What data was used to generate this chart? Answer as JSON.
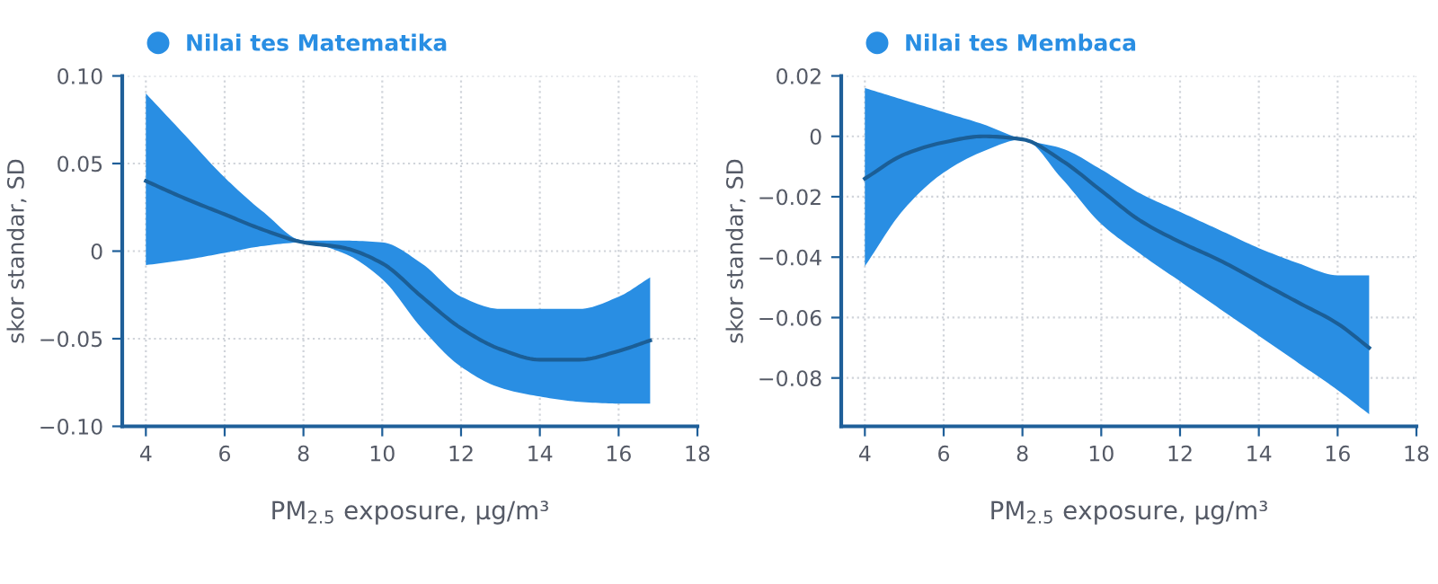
{
  "chart_data": [
    {
      "type": "line",
      "xlabel": "PM$_{2.5}$ exposure, μg/m³",
      "ylabel": "skor standar, SD",
      "xlim": [
        3.4,
        18
      ],
      "xticks": [
        4,
        6,
        8,
        10,
        12,
        14,
        16,
        18
      ],
      "ylim": [
        -0.1,
        0.1
      ],
      "yticks": [
        {
          "value": 0.1,
          "label": "0.10"
        },
        {
          "value": 0.05,
          "label": "0.05"
        },
        0,
        {
          "value": -0.05,
          "label": "−0.05"
        },
        {
          "value": -0.1,
          "label": "−0.10"
        }
      ],
      "grid": true,
      "legend": "top left",
      "marker": "none",
      "line_style": "solid",
      "x": [
        4,
        5,
        6,
        7,
        8,
        9,
        10,
        11,
        12,
        13,
        14,
        15,
        16,
        16.8
      ],
      "series": [
        {
          "name": "Nilai tes Matematika",
          "color": "#1b5e96",
          "values": [
            0.04,
            0.03,
            0.021,
            0.012,
            0.005,
            0.002,
            -0.007,
            -0.026,
            -0.044,
            -0.056,
            -0.062,
            -0.062,
            -0.057,
            -0.051
          ],
          "lower": [
            -0.008,
            -0.005,
            -0.001,
            0.003,
            0.005,
            -0.001,
            -0.016,
            -0.044,
            -0.066,
            -0.078,
            -0.083,
            -0.086,
            -0.087,
            -0.087
          ],
          "upper": [
            0.09,
            0.066,
            0.042,
            0.022,
            0.006,
            0.006,
            0.005,
            -0.007,
            -0.026,
            -0.033,
            -0.033,
            -0.033,
            -0.026,
            -0.015
          ]
        }
      ]
    },
    {
      "type": "line",
      "xlabel": "PM$_{2.5}$ exposure, μg/m³",
      "ylabel": "skor standar, SD",
      "xlim": [
        3.4,
        18
      ],
      "xticks": [
        4,
        6,
        8,
        10,
        12,
        14,
        16,
        18
      ],
      "ylim": [
        -0.096,
        0.02
      ],
      "yticks": [
        {
          "value": 0.02,
          "label": "0.02"
        },
        0,
        {
          "value": -0.02,
          "label": "−0.02"
        },
        {
          "value": -0.04,
          "label": "−0.04"
        },
        {
          "value": -0.06,
          "label": "−0.06"
        },
        {
          "value": -0.08,
          "label": "−0.08"
        }
      ],
      "grid": true,
      "legend": "top left",
      "marker": "none",
      "line_style": "solid",
      "x": [
        4,
        5,
        6,
        7,
        8,
        9,
        10,
        11,
        12,
        13,
        14,
        15,
        16,
        16.8
      ],
      "series": [
        {
          "name": "Nilai tes Membaca",
          "color": "#1b5e96",
          "values": [
            -0.014,
            -0.006,
            -0.002,
            0,
            -0.001,
            -0.008,
            -0.018,
            -0.028,
            -0.035,
            -0.041,
            -0.048,
            -0.055,
            -0.062,
            -0.07
          ],
          "lower": [
            -0.043,
            -0.024,
            -0.012,
            -0.005,
            -0.001,
            -0.014,
            -0.029,
            -0.039,
            -0.048,
            -0.057,
            -0.066,
            -0.075,
            -0.084,
            -0.092
          ],
          "upper": [
            0.016,
            0.012,
            0.008,
            0.004,
            -0.001,
            -0.004,
            -0.011,
            -0.019,
            -0.025,
            -0.031,
            -0.037,
            -0.042,
            -0.046,
            -0.046
          ]
        }
      ]
    }
  ]
}
